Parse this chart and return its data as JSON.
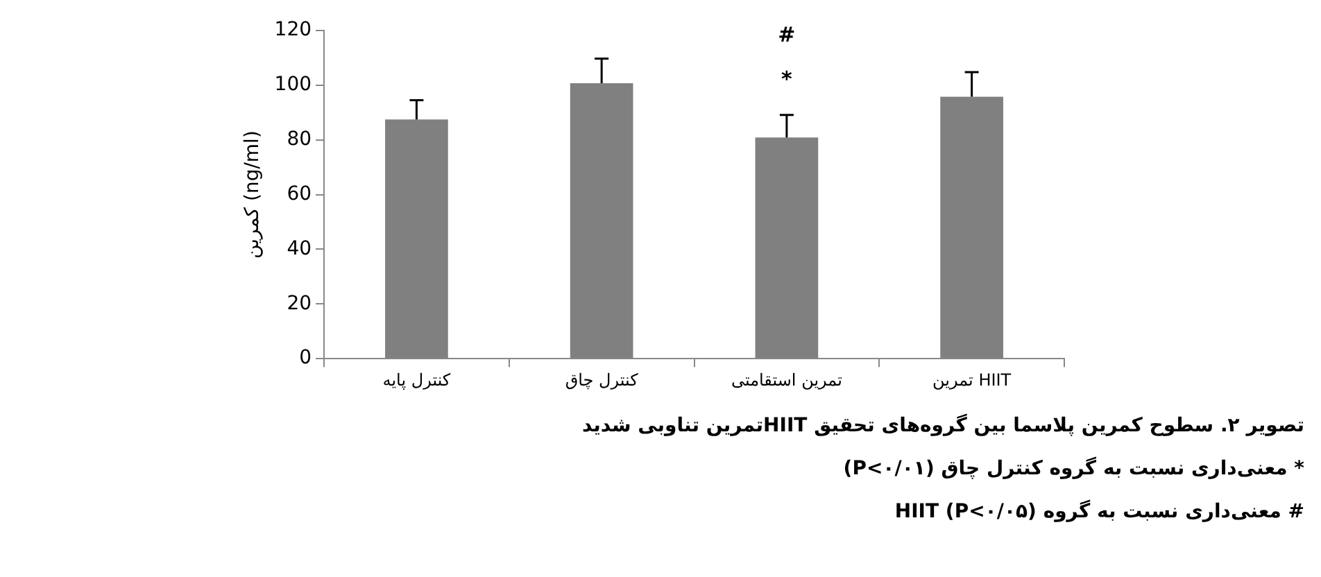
{
  "chart_data": {
    "type": "bar",
    "ylabel": "کمرین (ng/ml)",
    "categories": [
      "کنترل پایه",
      "کنترل چاق",
      "تمرین استقامتی",
      "تمرین HIIT"
    ],
    "values": [
      87.5,
      100.7,
      80.9,
      95.8
    ],
    "errors": [
      [
        87.5,
        94.5
      ],
      [
        100.7,
        109.7
      ],
      [
        80.9,
        89.1
      ],
      [
        95.8,
        104.8
      ]
    ],
    "color": "#808080",
    "ylim": [
      0,
      120
    ],
    "yticks": [
      0,
      20,
      40,
      60,
      80,
      100,
      120
    ],
    "grid": false,
    "legend": false,
    "annotations": [
      "#",
      "*",
      "تصویر ۲. سطوح کمرین پلاسما بین گروه‌های تحقیق HIITتمرین تناوبی شدید",
      "* معنی‌داری نسبت به گروه کنترل چاق (P<۰/۰۱)",
      "# معنی‌داری نسبت به گروه HIIT (P<۰/۰۵)"
    ]
  }
}
